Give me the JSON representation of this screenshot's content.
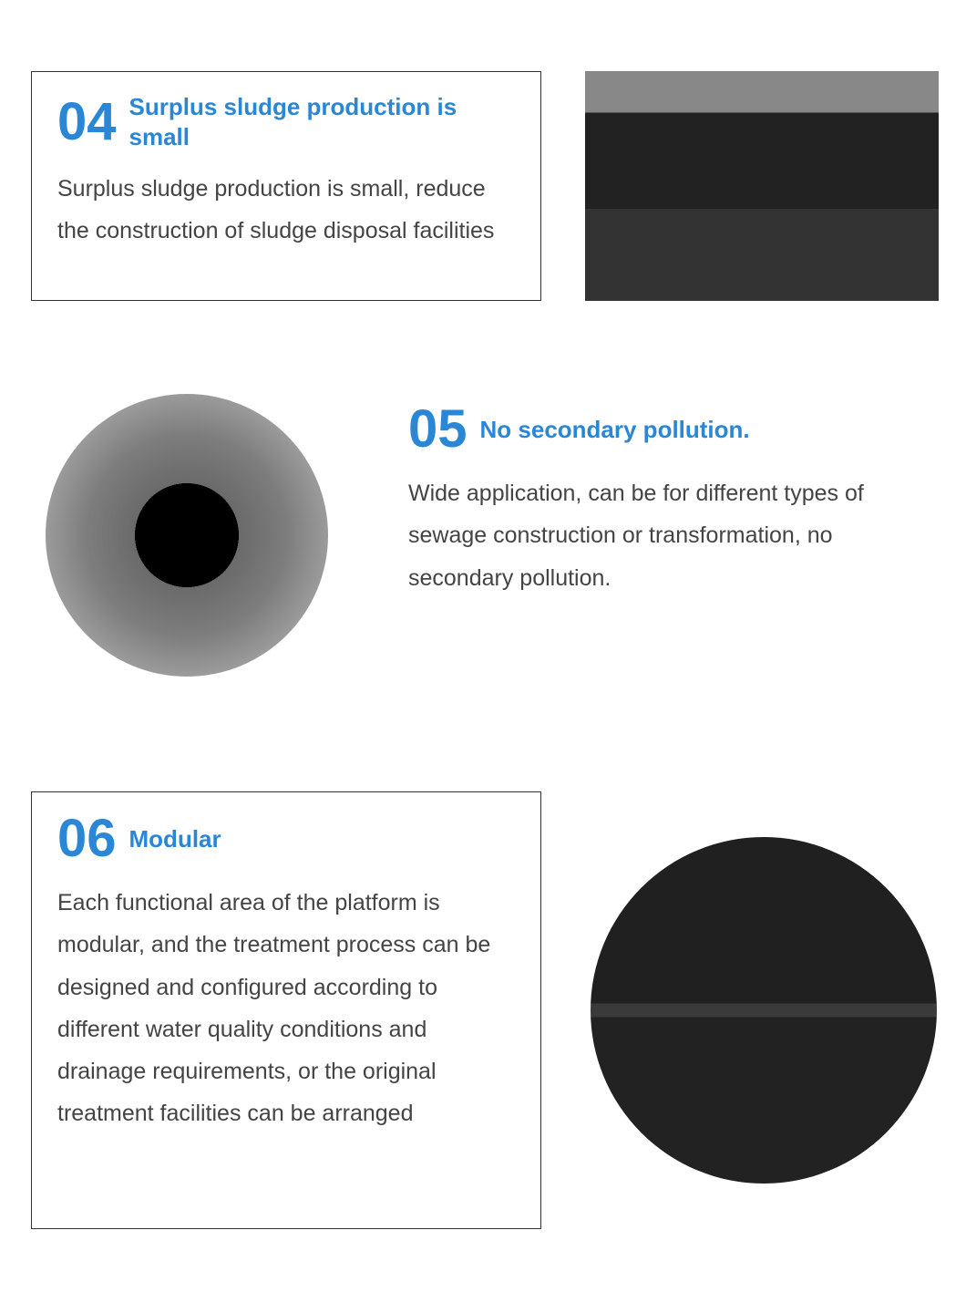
{
  "colors": {
    "accent": "#2a87d6",
    "body_text": "#444444",
    "border": "#333333",
    "background": "#ffffff"
  },
  "typography": {
    "number_fontsize": 58,
    "title_fontsize": 26,
    "body_fontsize": 25,
    "body_lineheight": 1.85
  },
  "sections": [
    {
      "number": "04",
      "title": "Surplus sludge production is small",
      "body": "Surplus sludge production is small, reduce the construction of sludge disposal facilities",
      "layout": "text-left-image-right",
      "image_shape": "rectangle"
    },
    {
      "number": "05",
      "title": "No secondary pollution.",
      "body": "Wide application, can be for different types of sewage construction or transformation, no secondary pollution.",
      "layout": "image-left-text-right",
      "image_shape": "circle",
      "text_box_border": false
    },
    {
      "number": "06",
      "title": "Modular",
      "body": "Each functional area of the platform is modular, and the treatment process can be designed and configured according to different water quality conditions and drainage requirements, or the original treatment facilities can be arranged",
      "layout": "text-left-image-right",
      "image_shape": "circle"
    }
  ]
}
